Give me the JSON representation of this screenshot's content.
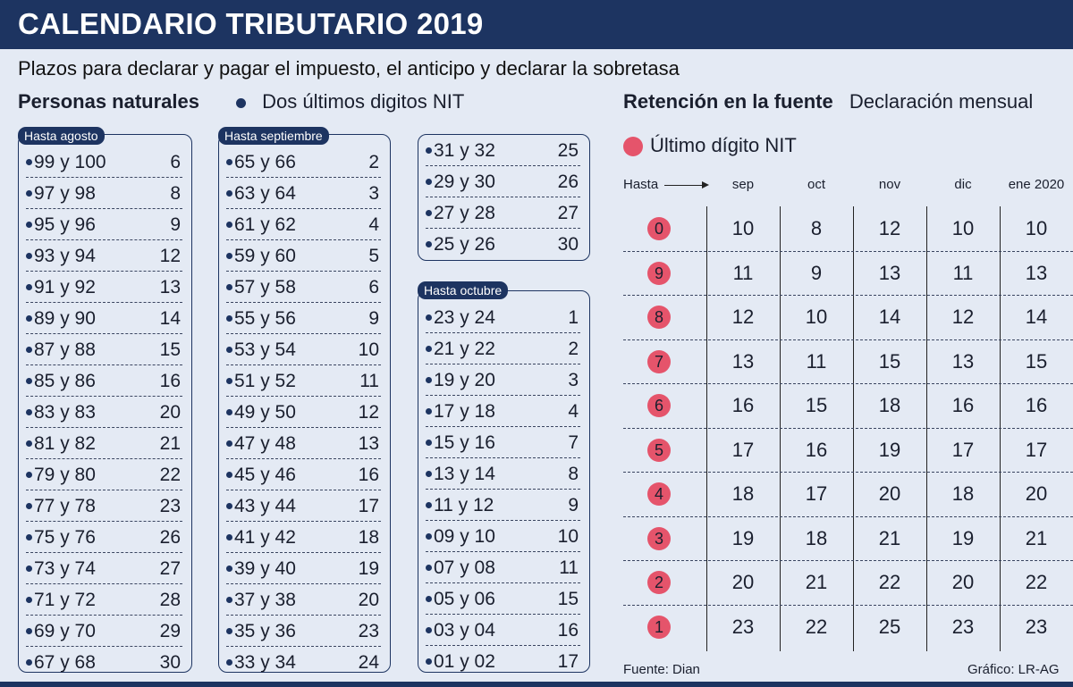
{
  "title": "CALENDARIO TRIBUTARIO 2019",
  "subtitle": "Plazos para declarar y pagar el impuesto, el anticipo y declarar la sobretasa",
  "personas": {
    "heading": "Personas naturales",
    "legend": "Dos últimos digitos NIT",
    "groups": [
      {
        "label": "Hasta agosto",
        "rows": [
          {
            "pair": "99 y 100",
            "day": "6"
          },
          {
            "pair": "97 y 98",
            "day": "8"
          },
          {
            "pair": "95 y 96",
            "day": "9"
          },
          {
            "pair": "93 y 94",
            "day": "12"
          },
          {
            "pair": "91 y 92",
            "day": "13"
          },
          {
            "pair": "89 y 90",
            "day": "14"
          },
          {
            "pair": "87 y 88",
            "day": "15"
          },
          {
            "pair": "85 y 86",
            "day": "16"
          },
          {
            "pair": "83 y 83",
            "day": "20"
          },
          {
            "pair": "81 y 82",
            "day": "21"
          },
          {
            "pair": "79 y 80",
            "day": "22"
          },
          {
            "pair": "77 y 78",
            "day": "23"
          },
          {
            "pair": "75 y 76",
            "day": "26"
          },
          {
            "pair": "73 y 74",
            "day": "27"
          },
          {
            "pair": "71 y 72",
            "day": "28"
          },
          {
            "pair": "69 y 70",
            "day": "29"
          },
          {
            "pair": "67 y 68",
            "day": "30"
          }
        ]
      },
      {
        "label": "Hasta septiembre",
        "rows": [
          {
            "pair": "65 y 66",
            "day": "2"
          },
          {
            "pair": "63 y 64",
            "day": "3"
          },
          {
            "pair": "61 y 62",
            "day": "4"
          },
          {
            "pair": "59 y 60",
            "day": "5"
          },
          {
            "pair": "57 y 58",
            "day": "6"
          },
          {
            "pair": "55 y 56",
            "day": "9"
          },
          {
            "pair": "53 y 54",
            "day": "10"
          },
          {
            "pair": "51 y 52",
            "day": "11"
          },
          {
            "pair": "49 y 50",
            "day": "12"
          },
          {
            "pair": "47 y 48",
            "day": "13"
          },
          {
            "pair": "45 y 46",
            "day": "16"
          },
          {
            "pair": "43 y 44",
            "day": "17"
          },
          {
            "pair": "41 y 42",
            "day": "18"
          },
          {
            "pair": "39 y 40",
            "day": "19"
          },
          {
            "pair": "37 y 38",
            "day": "20"
          },
          {
            "pair": "35 y 36",
            "day": "23"
          },
          {
            "pair": "33 y 34",
            "day": "24"
          }
        ]
      },
      {
        "label": "",
        "rows": [
          {
            "pair": "31 y 32",
            "day": "25"
          },
          {
            "pair": "29 y 30",
            "day": "26"
          },
          {
            "pair": "27 y 28",
            "day": "27"
          },
          {
            "pair": "25 y 26",
            "day": "30"
          }
        ]
      },
      {
        "label": "Hasta octubre",
        "rows": [
          {
            "pair": "23 y 24",
            "day": "1"
          },
          {
            "pair": "21 y 22",
            "day": "2"
          },
          {
            "pair": "19 y 20",
            "day": "3"
          },
          {
            "pair": "17 y 18",
            "day": "4"
          },
          {
            "pair": "15 y 16",
            "day": "7"
          },
          {
            "pair": "13 y 14",
            "day": "8"
          },
          {
            "pair": "11 y 12",
            "day": "9"
          },
          {
            "pair": "09 y 10",
            "day": "10"
          },
          {
            "pair": "07 y 08",
            "day": "11"
          },
          {
            "pair": "05 y 06",
            "day": "15"
          },
          {
            "pair": "03 y 04",
            "day": "16"
          },
          {
            "pair": "01 y 02",
            "day": "17"
          }
        ]
      }
    ]
  },
  "retencion": {
    "heading": "Retención en la fuente",
    "heading_sub": "Declaración mensual",
    "legend": "Último dígito NIT",
    "hasta": "Hasta",
    "months": [
      "sep",
      "oct",
      "nov",
      "dic",
      "ene 2020"
    ],
    "rows": [
      {
        "digit": "0",
        "days": [
          "10",
          "8",
          "12",
          "10",
          "10"
        ]
      },
      {
        "digit": "9",
        "days": [
          "11",
          "9",
          "13",
          "11",
          "13"
        ]
      },
      {
        "digit": "8",
        "days": [
          "12",
          "10",
          "14",
          "12",
          "14"
        ]
      },
      {
        "digit": "7",
        "days": [
          "13",
          "11",
          "15",
          "13",
          "15"
        ]
      },
      {
        "digit": "6",
        "days": [
          "16",
          "15",
          "18",
          "16",
          "16"
        ]
      },
      {
        "digit": "5",
        "days": [
          "17",
          "16",
          "19",
          "17",
          "17"
        ]
      },
      {
        "digit": "4",
        "days": [
          "18",
          "17",
          "20",
          "18",
          "20"
        ]
      },
      {
        "digit": "3",
        "days": [
          "19",
          "18",
          "21",
          "19",
          "21"
        ]
      },
      {
        "digit": "2",
        "days": [
          "20",
          "21",
          "22",
          "20",
          "22"
        ]
      },
      {
        "digit": "1",
        "days": [
          "23",
          "22",
          "25",
          "23",
          "23"
        ]
      }
    ]
  },
  "footer": {
    "source": "Fuente: Dian",
    "credit": "Gráfico: LR-AG"
  },
  "colors": {
    "navy": "#1d3461",
    "background": "#e4eaf4",
    "accent_pink": "#e5546b"
  }
}
